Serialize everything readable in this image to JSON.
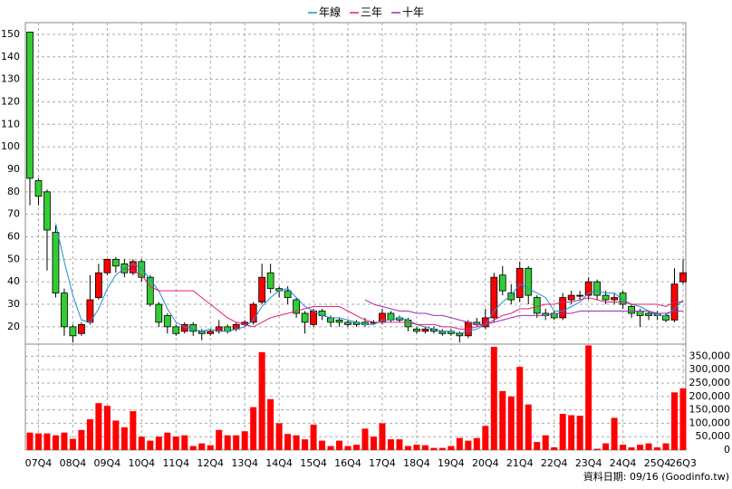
{
  "chart_data": {
    "type": "candlestick",
    "categories": [
      null,
      "07Q4",
      null,
      null,
      null,
      "08Q4",
      null,
      null,
      null,
      "09Q4",
      null,
      null,
      null,
      "10Q4",
      null,
      null,
      null,
      "11Q4",
      null,
      null,
      null,
      "12Q4",
      null,
      null,
      null,
      "13Q4",
      null,
      null,
      null,
      "14Q4",
      null,
      null,
      null,
      "15Q4",
      null,
      null,
      null,
      "16Q4",
      null,
      null,
      null,
      "17Q4",
      null,
      null,
      null,
      "18Q4",
      null,
      null,
      null,
      "19Q4",
      null,
      null,
      null,
      "20Q4",
      null,
      null,
      null,
      "21Q4",
      null,
      null,
      null,
      "22Q4",
      null,
      null,
      null,
      "23Q4",
      null,
      null,
      null,
      "24Q4",
      null,
      null,
      null,
      "25Q4",
      null,
      null,
      "26Q3"
    ],
    "open": [
      151,
      85,
      80,
      62,
      35,
      20,
      17,
      22,
      33,
      44,
      50,
      48,
      44,
      49,
      42,
      30,
      25,
      20,
      18,
      21,
      18,
      17,
      18,
      20,
      19,
      21,
      22,
      31,
      44,
      37,
      36,
      32,
      26,
      21,
      27,
      24,
      23,
      22,
      22,
      22,
      22,
      22,
      26,
      24,
      23,
      19,
      18,
      19,
      18,
      18,
      17,
      16,
      22,
      20,
      24,
      43,
      35,
      33,
      46,
      33,
      26,
      26,
      24,
      32,
      34,
      34,
      40,
      34,
      32,
      35,
      29,
      27,
      26,
      26,
      25,
      23,
      40
    ],
    "high": [
      151,
      86,
      81,
      65,
      37,
      21,
      22,
      43,
      48,
      50,
      51,
      50,
      50,
      50,
      43,
      31,
      26,
      21,
      22,
      22,
      19,
      19,
      23,
      21,
      22,
      23,
      31,
      48,
      48,
      38,
      38,
      33,
      27,
      28,
      28,
      25,
      24,
      23,
      23,
      24,
      23,
      28,
      27,
      25,
      24,
      20,
      20,
      20,
      19,
      19,
      18,
      23,
      24,
      28,
      44,
      47,
      39,
      49,
      47,
      34,
      28,
      27,
      35,
      36,
      36,
      42,
      41,
      36,
      35,
      36,
      30,
      28,
      27,
      27,
      26,
      46,
      50
    ],
    "low": [
      74,
      74,
      45,
      33,
      16,
      13,
      16,
      21,
      32,
      43,
      44,
      42,
      43,
      40,
      29,
      20,
      17,
      16,
      17,
      16,
      14,
      16,
      17,
      17,
      18,
      20,
      21,
      30,
      35,
      33,
      30,
      24,
      17,
      20,
      23,
      20,
      20,
      20,
      20,
      20,
      21,
      21,
      22,
      22,
      18,
      17,
      17,
      17,
      16,
      16,
      13,
      15,
      20,
      19,
      22,
      34,
      30,
      31,
      30,
      24,
      23,
      23,
      23,
      30,
      32,
      32,
      32,
      30,
      30,
      28,
      24,
      20,
      23,
      23,
      22,
      22,
      39
    ],
    "close": [
      86,
      78,
      63,
      35,
      20,
      16,
      21,
      32,
      44,
      50,
      47,
      44,
      49,
      42,
      30,
      22,
      20,
      17,
      21,
      18,
      17,
      18,
      20,
      18,
      21,
      22,
      30,
      42,
      37,
      36,
      33,
      26,
      22,
      27,
      25,
      22,
      22,
      21,
      21,
      21,
      22,
      26,
      23,
      23,
      20,
      18,
      19,
      18,
      17,
      17,
      16,
      22,
      21,
      24,
      42,
      36,
      32,
      46,
      34,
      26,
      25,
      24,
      33,
      34,
      34,
      40,
      34,
      32,
      33,
      30,
      26,
      25,
      25,
      25,
      23,
      39,
      44
    ],
    "volume": [
      65000,
      62000,
      62000,
      55000,
      65000,
      42000,
      75000,
      115000,
      175000,
      165000,
      110000,
      85000,
      145000,
      50000,
      35000,
      50000,
      65000,
      50000,
      55000,
      15000,
      25000,
      18000,
      75000,
      55000,
      55000,
      70000,
      160000,
      365000,
      190000,
      100000,
      60000,
      55000,
      40000,
      95000,
      35000,
      15000,
      35000,
      15000,
      20000,
      80000,
      50000,
      100000,
      40000,
      40000,
      15000,
      20000,
      18000,
      8000,
      8000,
      15000,
      45000,
      35000,
      45000,
      90000,
      385000,
      220000,
      200000,
      310000,
      170000,
      30000,
      55000,
      10000,
      135000,
      130000,
      128000,
      390000,
      5000,
      25000,
      120000,
      20000,
      10000,
      20000,
      25000,
      10000,
      25000,
      215000,
      230000
    ],
    "up_color": "#ff0000",
    "down_color": "#33cc33",
    "volume_color": "#ff0000",
    "series": [
      {
        "name": "年線",
        "color": "#1f8fd6",
        "values": [
          null,
          null,
          null,
          66,
          49,
          34,
          23,
          22,
          28,
          37,
          43,
          46,
          48,
          46,
          41,
          36,
          28,
          22,
          20,
          19,
          18,
          19,
          18,
          18,
          19,
          20,
          23,
          29,
          33,
          36,
          37,
          33,
          29,
          27,
          25,
          24,
          24,
          23,
          22,
          21,
          21,
          23,
          23,
          24,
          23,
          21,
          20,
          19,
          18,
          18,
          17,
          18,
          19,
          21,
          27,
          31,
          34,
          39,
          37,
          35,
          33,
          27,
          27,
          29,
          31,
          35,
          36,
          35,
          35,
          32,
          30,
          29,
          27,
          25,
          25,
          28,
          32
        ]
      },
      {
        "name": "三年",
        "color": "#e0207a",
        "values": [
          null,
          null,
          null,
          null,
          null,
          null,
          null,
          null,
          null,
          null,
          null,
          46,
          45,
          43,
          38,
          36,
          36,
          36,
          36,
          36,
          33,
          30,
          27,
          24,
          22,
          21,
          20,
          22,
          24,
          25,
          26,
          27,
          28,
          29,
          29,
          29,
          29,
          27,
          25,
          23,
          22,
          22,
          22,
          22,
          22,
          21,
          21,
          21,
          20,
          20,
          19,
          19,
          20,
          21,
          23,
          25,
          26,
          28,
          28,
          29,
          30,
          30,
          31,
          31,
          32,
          33,
          32,
          31,
          31,
          31,
          30,
          30,
          30,
          30,
          29,
          31,
          31
        ]
      },
      {
        "name": "十年",
        "color": "#9a2fb8",
        "values": [
          null,
          null,
          null,
          null,
          null,
          null,
          null,
          null,
          null,
          null,
          null,
          null,
          null,
          null,
          null,
          null,
          null,
          null,
          null,
          null,
          null,
          null,
          null,
          null,
          null,
          null,
          null,
          null,
          null,
          null,
          null,
          null,
          null,
          null,
          null,
          null,
          null,
          null,
          null,
          32,
          30,
          29,
          28,
          27,
          27,
          26,
          26,
          25,
          25,
          24,
          23,
          22,
          21,
          21,
          22,
          23,
          24,
          25,
          25,
          25,
          25,
          26,
          26,
          26,
          27,
          27,
          27,
          27,
          27,
          27,
          27,
          27,
          27,
          26,
          26,
          27,
          27
        ]
      }
    ],
    "ylim": [
      12.3,
      155.2
    ],
    "yticks": [
      20,
      30,
      40,
      50,
      60,
      70,
      80,
      90,
      100,
      110,
      120,
      130,
      140,
      150
    ],
    "volume_ylim": [
      0,
      395000
    ],
    "volume_yticks": [
      0,
      {
        "value": 50000,
        "label": "50,000"
      },
      {
        "value": 100000,
        "label": "100,000"
      },
      {
        "value": 150000,
        "label": "150,000"
      },
      {
        "value": 200000,
        "label": "200,000"
      },
      {
        "value": 250000,
        "label": "250,000"
      },
      {
        "value": 300000,
        "label": "300,000"
      },
      {
        "value": 350000,
        "label": "350,000"
      }
    ],
    "grid": true,
    "legend": "top",
    "footer": "資料日期: 09/16 (Goodinfo.tw)"
  }
}
